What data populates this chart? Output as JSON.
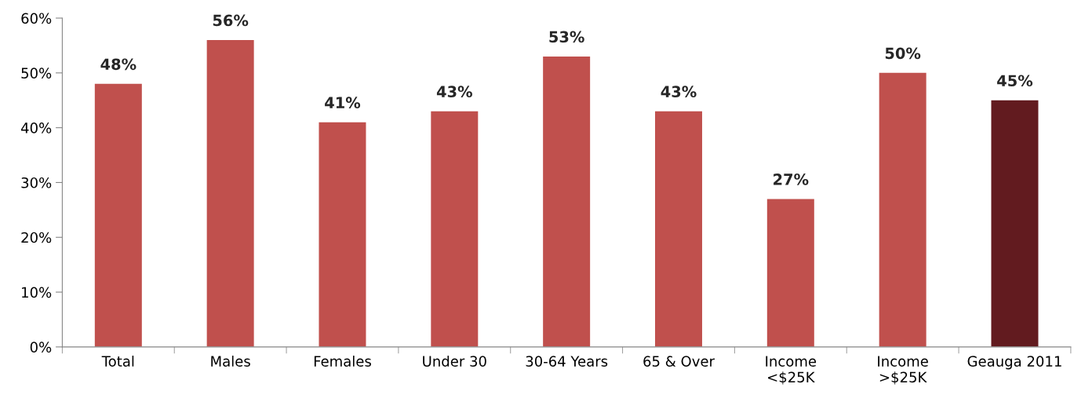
{
  "chart_data": {
    "type": "bar",
    "categories": [
      "Total",
      "Males",
      "Females",
      "Under 30",
      "30-64 Years",
      "65 & Over",
      "Income\n<$25K",
      "Income\n>$25K",
      "Geauga 2011"
    ],
    "values": [
      48,
      56,
      41,
      43,
      53,
      43,
      27,
      50,
      45
    ],
    "colors": [
      "#c0504d",
      "#c0504d",
      "#c0504d",
      "#c0504d",
      "#c0504d",
      "#c0504d",
      "#c0504d",
      "#c0504d",
      "#621b1f"
    ],
    "value_labels": [
      "48%",
      "56%",
      "41%",
      "43%",
      "53%",
      "43%",
      "27%",
      "50%",
      "45%"
    ],
    "ylim": [
      0,
      60
    ],
    "yticks": [
      {
        "value": 0,
        "label": "0%"
      },
      {
        "value": 10,
        "label": "10%"
      },
      {
        "value": 20,
        "label": "20%"
      },
      {
        "value": 30,
        "label": "30%"
      },
      {
        "value": 40,
        "label": "40%"
      },
      {
        "value": 50,
        "label": "50%"
      },
      {
        "value": 60,
        "label": "60%"
      }
    ],
    "grid": false
  }
}
